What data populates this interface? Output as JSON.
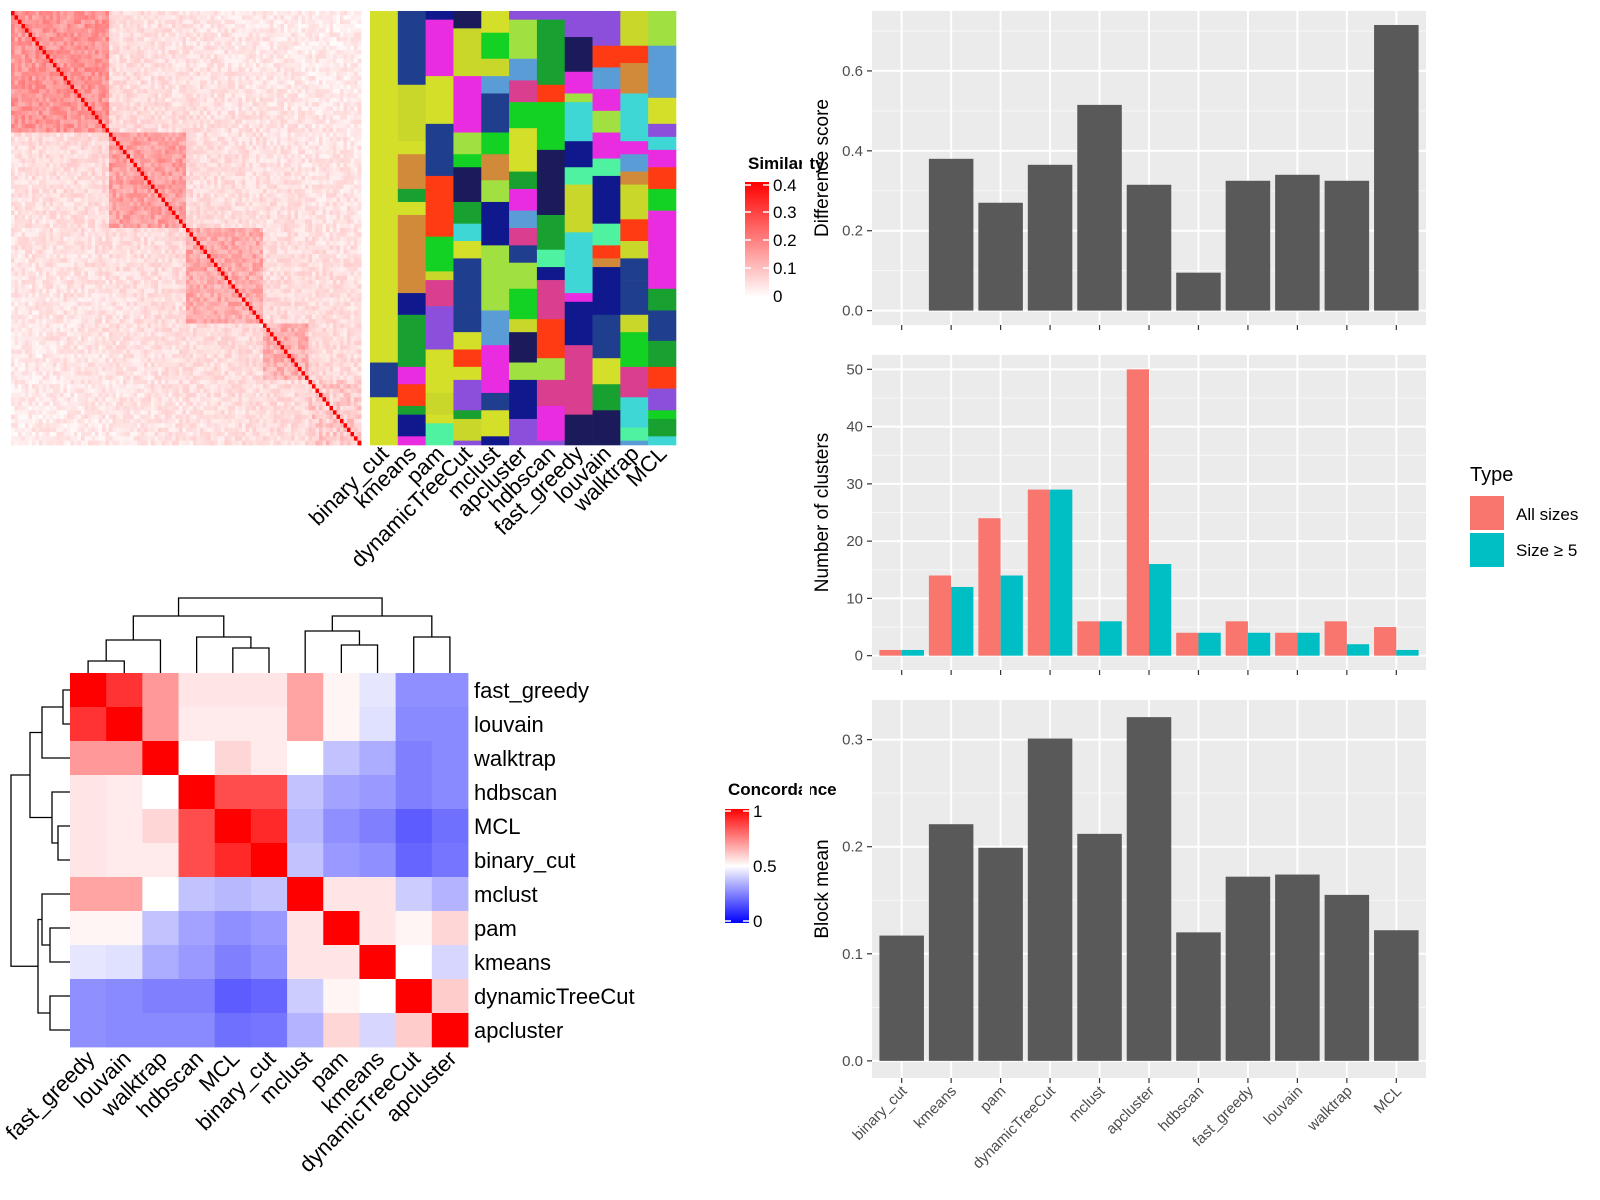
{
  "similarity_heatmap": {
    "legend_title": "Similarity",
    "legend_ticks": [
      "0.4",
      "0.3",
      "0.2",
      "0.1",
      "0"
    ],
    "colors": {
      "low": "#ffffff",
      "high": "#ff0000"
    },
    "methods": [
      "binary_cut",
      "kmeans",
      "pam",
      "dynamicTreeCut",
      "mclust",
      "apcluster",
      "hdbscan",
      "fast_greedy",
      "louvain",
      "walktrap",
      "MCL"
    ],
    "cluster_colors": [
      "#d4df2a",
      "#da3e8e",
      "#5a9cd6",
      "#13d223",
      "#8b4fdc",
      "#203e8e",
      "#4ff2a0",
      "#ff3b14",
      "#10188e",
      "#c9d72a",
      "#18a030",
      "#3fd6d6",
      "#ea2ce0",
      "#d08a3a",
      "#1b1b5c",
      "#a0e040"
    ]
  },
  "concordance_heatmap": {
    "legend_title": "Concordance",
    "legend_ticks": [
      "1",
      "0.5",
      "0"
    ],
    "colors": {
      "low": "#0000ff",
      "mid": "#ffffff",
      "high": "#ff0000"
    },
    "rows": [
      "fast_greedy",
      "louvain",
      "walktrap",
      "hdbscan",
      "MCL",
      "binary_cut",
      "mclust",
      "pam",
      "kmeans",
      "dynamicTreeCut",
      "apcluster"
    ],
    "values": [
      [
        1.0,
        0.9,
        0.7,
        0.55,
        0.55,
        0.55,
        0.68,
        0.52,
        0.45,
        0.28,
        0.28
      ],
      [
        0.9,
        1.0,
        0.7,
        0.54,
        0.54,
        0.54,
        0.68,
        0.52,
        0.44,
        0.27,
        0.27
      ],
      [
        0.7,
        0.7,
        1.0,
        0.5,
        0.58,
        0.54,
        0.5,
        0.38,
        0.34,
        0.25,
        0.27
      ],
      [
        0.55,
        0.54,
        0.5,
        1.0,
        0.85,
        0.85,
        0.38,
        0.32,
        0.3,
        0.25,
        0.27
      ],
      [
        0.55,
        0.54,
        0.58,
        0.85,
        1.0,
        0.92,
        0.36,
        0.28,
        0.25,
        0.18,
        0.22
      ],
      [
        0.55,
        0.54,
        0.54,
        0.85,
        0.92,
        1.0,
        0.38,
        0.3,
        0.28,
        0.2,
        0.23
      ],
      [
        0.68,
        0.68,
        0.5,
        0.38,
        0.36,
        0.38,
        1.0,
        0.55,
        0.55,
        0.4,
        0.35
      ],
      [
        0.52,
        0.52,
        0.38,
        0.32,
        0.28,
        0.3,
        0.55,
        1.0,
        0.55,
        0.52,
        0.58
      ],
      [
        0.45,
        0.44,
        0.34,
        0.3,
        0.25,
        0.28,
        0.55,
        0.55,
        1.0,
        0.5,
        0.42
      ],
      [
        0.28,
        0.27,
        0.25,
        0.25,
        0.18,
        0.2,
        0.4,
        0.52,
        0.5,
        1.0,
        0.6
      ],
      [
        0.28,
        0.27,
        0.27,
        0.27,
        0.22,
        0.23,
        0.35,
        0.58,
        0.42,
        0.6,
        1.0
      ]
    ]
  },
  "chart_data": [
    {
      "type": "bar",
      "ylabel": "Difference score",
      "categories": [
        "binary_cut",
        "kmeans",
        "pam",
        "dynamicTreeCut",
        "mclust",
        "apcluster",
        "hdbscan",
        "fast_greedy",
        "louvain",
        "walktrap",
        "MCL"
      ],
      "values": [
        0,
        0.38,
        0.27,
        0.365,
        0.515,
        0.315,
        0.095,
        0.325,
        0.34,
        0.325,
        0.715
      ],
      "yticks": [
        0.0,
        0.2,
        0.4,
        0.6
      ],
      "ytick_labels": [
        "0.0",
        "0.2",
        "0.4",
        "0.6"
      ],
      "ylim": [
        -0.036,
        0.75
      ],
      "show_xticklabels": false
    },
    {
      "type": "bar",
      "ylabel": "Number of clusters",
      "categories": [
        "binary_cut",
        "kmeans",
        "pam",
        "dynamicTreeCut",
        "mclust",
        "apcluster",
        "hdbscan",
        "fast_greedy",
        "louvain",
        "walktrap",
        "MCL"
      ],
      "series": [
        {
          "name": "All sizes",
          "color": "#f8766d",
          "values": [
            1,
            14,
            24,
            29,
            6,
            50,
            4,
            6,
            4,
            6,
            5
          ]
        },
        {
          "name": "Size ≥ 5",
          "color": "#00bfc4",
          "values": [
            1,
            12,
            14,
            29,
            6,
            16,
            4,
            4,
            4,
            2,
            1
          ]
        }
      ],
      "yticks": [
        0,
        10,
        20,
        30,
        40,
        50
      ],
      "ytick_labels": [
        "0",
        "10",
        "20",
        "30",
        "40",
        "50"
      ],
      "ylim": [
        -2.5,
        52.5
      ],
      "legend_title": "Type",
      "legend_position": "right",
      "show_xticklabels": false
    },
    {
      "type": "bar",
      "ylabel": "Block mean",
      "categories": [
        "binary_cut",
        "kmeans",
        "pam",
        "dynamicTreeCut",
        "mclust",
        "apcluster",
        "hdbscan",
        "fast_greedy",
        "louvain",
        "walktrap",
        "MCL"
      ],
      "values": [
        0.117,
        0.221,
        0.199,
        0.301,
        0.212,
        0.321,
        0.12,
        0.172,
        0.174,
        0.155,
        0.122
      ],
      "yticks": [
        0.0,
        0.1,
        0.2,
        0.3
      ],
      "ytick_labels": [
        "0.0",
        "0.1",
        "0.2",
        "0.3"
      ],
      "ylim": [
        -0.016,
        0.337
      ],
      "show_xticklabels": true
    }
  ]
}
